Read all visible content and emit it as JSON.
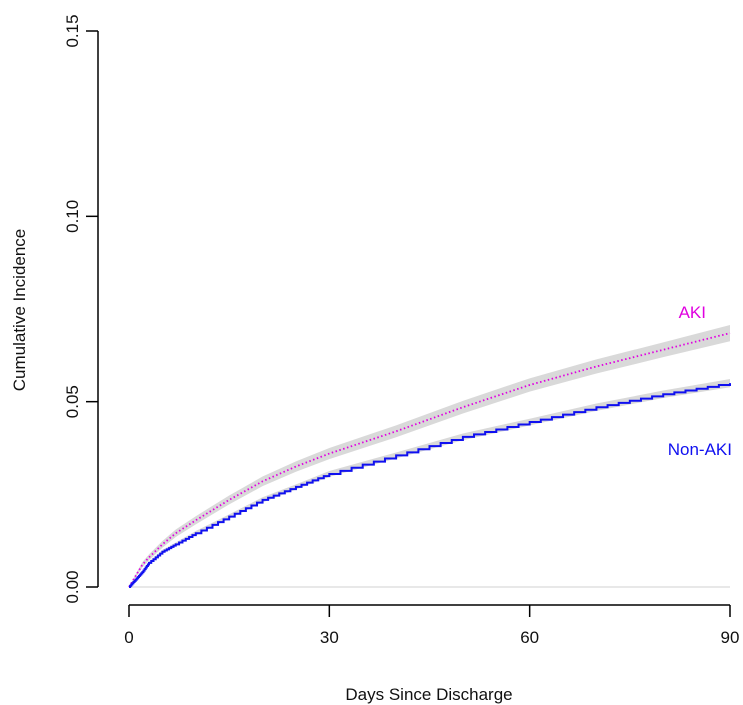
{
  "chart_data": {
    "type": "line",
    "title": "",
    "xlabel": "Days Since Discharge",
    "ylabel": "Cumulative Incidence",
    "xlim": [
      0,
      90
    ],
    "ylim": [
      0,
      0.15
    ],
    "x_ticks": [
      0,
      30,
      60,
      90
    ],
    "x_tick_labels": [
      "0",
      "30",
      "60",
      "90"
    ],
    "y_ticks": [
      0,
      0.05,
      0.1,
      0.15
    ],
    "y_tick_labels": [
      "0.00",
      "0.05",
      "0.10",
      "0.15"
    ],
    "grid": false,
    "series": [
      {
        "name": "AKI",
        "color": "#e000e0",
        "style": "dotted",
        "band_color": "#d9d9d9",
        "x": [
          0,
          1,
          2,
          3,
          5,
          7,
          10,
          15,
          20,
          25,
          30,
          40,
          50,
          60,
          70,
          80,
          90
        ],
        "y": [
          0,
          0.003,
          0.006,
          0.008,
          0.0115,
          0.0145,
          0.018,
          0.0235,
          0.0285,
          0.0325,
          0.036,
          0.042,
          0.0485,
          0.0545,
          0.0595,
          0.064,
          0.0685
        ],
        "band_halfwidth": [
          0,
          0.0005,
          0.0007,
          0.0008,
          0.0009,
          0.001,
          0.0011,
          0.0012,
          0.0013,
          0.0014,
          0.0015,
          0.0016,
          0.0017,
          0.0018,
          0.0019,
          0.002,
          0.0022
        ]
      },
      {
        "name": "Non-AKI",
        "color": "#1010f0",
        "style": "step",
        "band_color": "#d9d9d9",
        "x": [
          0,
          1,
          2,
          3,
          5,
          7,
          10,
          15,
          20,
          25,
          30,
          40,
          50,
          60,
          70,
          80,
          90
        ],
        "y": [
          0,
          0.002,
          0.004,
          0.0065,
          0.0095,
          0.0115,
          0.0145,
          0.019,
          0.0235,
          0.027,
          0.0305,
          0.0355,
          0.0405,
          0.0445,
          0.0485,
          0.052,
          0.055
        ],
        "band_halfwidth": [
          0,
          0.0003,
          0.0004,
          0.0004,
          0.0005,
          0.0005,
          0.0006,
          0.0006,
          0.0007,
          0.0007,
          0.0008,
          0.0008,
          0.0009,
          0.0009,
          0.001,
          0.001,
          0.0011
        ]
      }
    ]
  }
}
